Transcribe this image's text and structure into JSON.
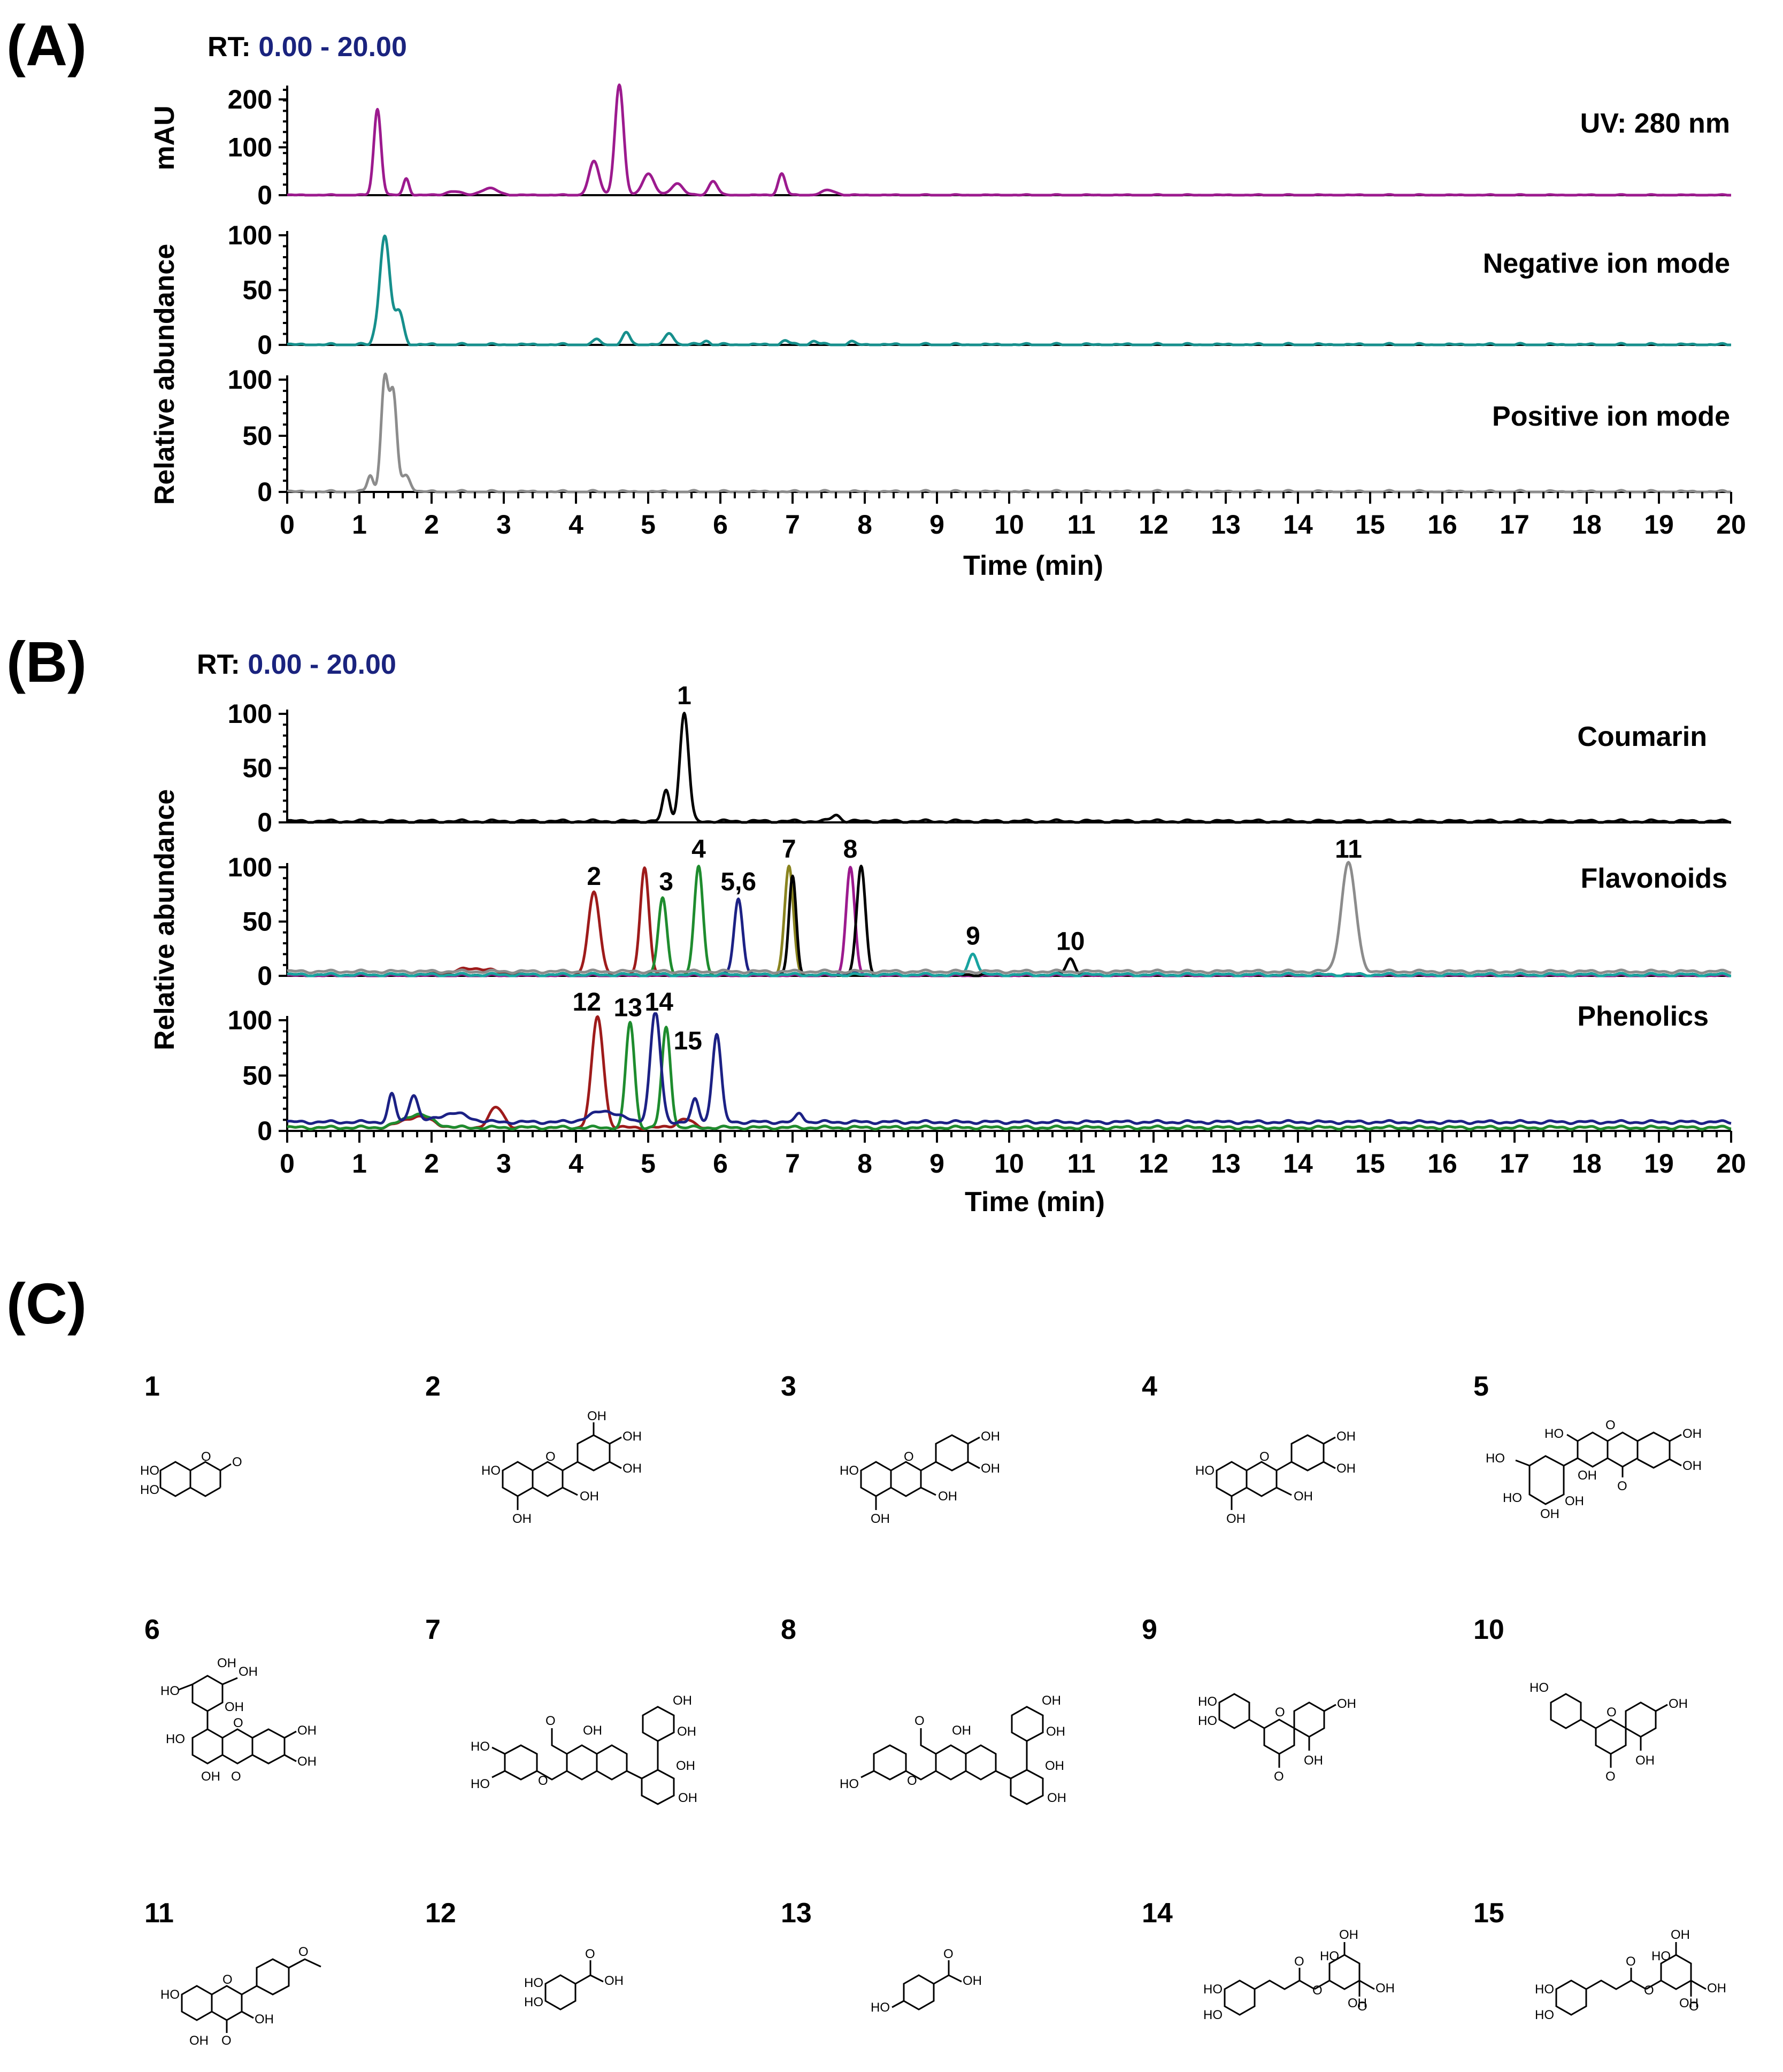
{
  "panels": {
    "A": {
      "letter": "(A)",
      "rt_prefix": "RT:",
      "rt_range": "0.00 - 20.00",
      "xlabel": "Time (min)",
      "left_labels": {
        "uv": "mAU",
        "ms": "Relative abundance"
      },
      "traces": {
        "uv": "UV: 280 nm",
        "neg": "Negative ion mode",
        "pos": "Positive ion mode"
      }
    },
    "B": {
      "letter": "(B)",
      "rt_prefix": "RT:",
      "rt_range": "0.00 - 20.00",
      "xlabel": "Time (min)",
      "ylabel": "Relative abundance",
      "traces": {
        "coumarin": "Coumarin",
        "flavonoids": "Flavonoids",
        "phenolics": "Phenolics"
      }
    },
    "C": {
      "letter": "(C)"
    }
  },
  "compounds": [
    "1",
    "2",
    "3",
    "4",
    "5",
    "6",
    "7",
    "8",
    "9",
    "10",
    "11",
    "12",
    "13",
    "14",
    "15"
  ],
  "colors": {
    "uv": "#9c1a8e",
    "neg": "#168f8c",
    "pos": "#8c8c8c",
    "black": "#000000",
    "darkred": "#9e1b1b",
    "green": "#1e8c2e",
    "navy": "#1c2185",
    "olive": "#8a8420",
    "purple": "#9c1a8e",
    "teal": "#18a3a0",
    "gray": "#8c8c8c",
    "rt_value": "#1a237e"
  },
  "chart_data": [
    {
      "type": "line",
      "title": "UV: 280 nm",
      "xlabel": "Time (min)",
      "ylabel": "mAU",
      "xlim": [
        0,
        20
      ],
      "ylim": [
        0,
        220
      ],
      "yticks": [
        0,
        100,
        200
      ],
      "xticks": [
        0,
        1,
        2,
        3,
        4,
        5,
        6,
        7,
        8,
        9,
        10,
        11,
        12,
        13,
        14,
        15,
        16,
        17,
        18,
        19,
        20
      ],
      "series": [
        {
          "name": "UV: 280 nm",
          "color": "#9c1a8e",
          "peaks": [
            [
              1.25,
              180,
              0.05
            ],
            [
              1.65,
              35,
              0.04
            ],
            [
              2.3,
              8,
              0.1
            ],
            [
              2.8,
              14,
              0.12
            ],
            [
              4.25,
              70,
              0.07
            ],
            [
              4.6,
              230,
              0.06
            ],
            [
              5.0,
              45,
              0.08
            ],
            [
              5.4,
              25,
              0.08
            ],
            [
              5.9,
              30,
              0.06
            ],
            [
              6.85,
              45,
              0.05
            ],
            [
              7.5,
              10,
              0.1
            ]
          ],
          "baseline": 0
        }
      ]
    },
    {
      "type": "line",
      "title": "Negative ion mode",
      "ylabel": "Relative abundance",
      "xlim": [
        0,
        20
      ],
      "ylim": [
        0,
        100
      ],
      "yticks": [
        0,
        50,
        100
      ],
      "series": [
        {
          "name": "Negative ion mode",
          "color": "#168f8c",
          "peaks": [
            [
              1.2,
              3,
              0.03
            ],
            [
              1.35,
              100,
              0.07
            ],
            [
              1.55,
              30,
              0.06
            ],
            [
              4.3,
              5,
              0.05
            ],
            [
              4.7,
              11,
              0.05
            ],
            [
              5.3,
              11,
              0.06
            ],
            [
              5.8,
              4,
              0.05
            ],
            [
              6.9,
              4,
              0.05
            ],
            [
              7.3,
              4,
              0.05
            ],
            [
              7.8,
              3,
              0.05
            ]
          ],
          "baseline": 0
        }
      ]
    },
    {
      "type": "line",
      "title": "Positive ion mode",
      "xlabel": "Time (min)",
      "ylabel": "Relative abundance",
      "xlim": [
        0,
        20
      ],
      "ylim": [
        0,
        100
      ],
      "yticks": [
        0,
        50,
        100
      ],
      "series": [
        {
          "name": "Positive ion mode",
          "color": "#8c8c8c",
          "peaks": [
            [
              1.15,
              15,
              0.04
            ],
            [
              1.35,
              100,
              0.05
            ],
            [
              1.47,
              85,
              0.05
            ],
            [
              1.65,
              15,
              0.06
            ]
          ],
          "baseline": 0
        }
      ]
    },
    {
      "type": "line",
      "title": "Coumarin",
      "ylabel": "Relative abundance",
      "xlim": [
        0,
        20
      ],
      "ylim": [
        0,
        100
      ],
      "yticks": [
        0,
        50,
        100
      ],
      "series": [
        {
          "name": "Coumarin",
          "color": "#000000",
          "peaks": [
            [
              5.25,
              28,
              0.05
            ],
            [
              5.5,
              100,
              0.06
            ],
            [
              7.6,
              6,
              0.06
            ]
          ],
          "baseline": 1
        }
      ],
      "annotations": [
        {
          "label": "1",
          "x": 5.5,
          "y": 100
        }
      ]
    },
    {
      "type": "line",
      "title": "Flavonoids",
      "ylabel": "Relative abundance",
      "xlim": [
        0,
        20
      ],
      "ylim": [
        0,
        100
      ],
      "yticks": [
        0,
        50,
        100
      ],
      "series": [
        {
          "name": "2",
          "color": "#9e1b1b",
          "peaks": [
            [
              2.6,
              6,
              0.25
            ],
            [
              4.25,
              75,
              0.08
            ],
            [
              4.95,
              100,
              0.06
            ]
          ],
          "baseline": 1
        },
        {
          "name": "3",
          "color": "#1e8c2e",
          "peaks": [
            [
              5.2,
              70,
              0.06
            ],
            [
              5.7,
              100,
              0.06
            ]
          ],
          "baseline": 1
        },
        {
          "name": "5,6",
          "color": "#1c2185",
          "peaks": [
            [
              6.25,
              70,
              0.06
            ],
            [
              7.8,
              3,
              0.05
            ]
          ],
          "baseline": 1
        },
        {
          "name": "7",
          "color": "#8a8420",
          "peaks": [
            [
              6.95,
              100,
              0.06
            ]
          ],
          "baseline": 1
        },
        {
          "name": "8",
          "color": "#9c1a8e",
          "peaks": [
            [
              7.8,
              100,
              0.06
            ]
          ],
          "baseline": 0
        },
        {
          "name": "black",
          "color": "#000000",
          "peaks": [
            [
              7.0,
              90,
              0.05
            ],
            [
              7.95,
              100,
              0.06
            ],
            [
              10.85,
              15,
              0.06
            ]
          ],
          "baseline": 1
        },
        {
          "name": "9",
          "color": "#18a3a0",
          "peaks": [
            [
              9.5,
              20,
              0.06
            ]
          ],
          "baseline": 1
        },
        {
          "name": "11",
          "color": "#8c8c8c",
          "peaks": [
            [
              14.7,
              100,
              0.1
            ]
          ],
          "baseline": 4
        }
      ],
      "annotations": [
        {
          "label": "2",
          "x": 4.25,
          "y": 75
        },
        {
          "label": "3",
          "x": 5.25,
          "y": 70
        },
        {
          "label": "4",
          "x": 5.7,
          "y": 100
        },
        {
          "label": "5,6",
          "x": 6.25,
          "y": 70
        },
        {
          "label": "7",
          "x": 6.95,
          "y": 100
        },
        {
          "label": "8",
          "x": 7.8,
          "y": 100
        },
        {
          "label": "9",
          "x": 9.5,
          "y": 20
        },
        {
          "label": "10",
          "x": 10.85,
          "y": 15
        },
        {
          "label": "11",
          "x": 14.7,
          "y": 100
        }
      ]
    },
    {
      "type": "line",
      "title": "Phenolics",
      "xlabel": "Time (min)",
      "ylabel": "Relative abundance",
      "xlim": [
        0,
        20
      ],
      "ylim": [
        0,
        100
      ],
      "yticks": [
        0,
        50,
        100
      ],
      "series": [
        {
          "name": "12",
          "color": "#9e1b1b",
          "peaks": [
            [
              1.8,
              10,
              0.2
            ],
            [
              2.9,
              18,
              0.1
            ],
            [
              4.3,
              100,
              0.08
            ],
            [
              5.5,
              8,
              0.1
            ]
          ],
          "baseline": 3
        },
        {
          "name": "13/15",
          "color": "#1e8c2e",
          "peaks": [
            [
              1.8,
              12,
              0.2
            ],
            [
              4.75,
              95,
              0.06
            ],
            [
              5.25,
              90,
              0.06
            ]
          ],
          "baseline": 3
        },
        {
          "name": "14",
          "color": "#1c2185",
          "peaks": [
            [
              1.45,
              25,
              0.05
            ],
            [
              1.75,
              25,
              0.06
            ],
            [
              2.3,
              8,
              0.2
            ],
            [
              4.4,
              10,
              0.2
            ],
            [
              5.1,
              100,
              0.07
            ],
            [
              5.65,
              20,
              0.05
            ],
            [
              5.95,
              80,
              0.06
            ],
            [
              7.1,
              8,
              0.05
            ]
          ],
          "baseline": 8
        }
      ],
      "annotations": [
        {
          "label": "12",
          "x": 4.15,
          "y": 100
        },
        {
          "label": "13",
          "x": 4.72,
          "y": 95
        },
        {
          "label": "14",
          "x": 5.15,
          "y": 100
        },
        {
          "label": "15",
          "x": 5.55,
          "y": 65
        }
      ]
    }
  ]
}
